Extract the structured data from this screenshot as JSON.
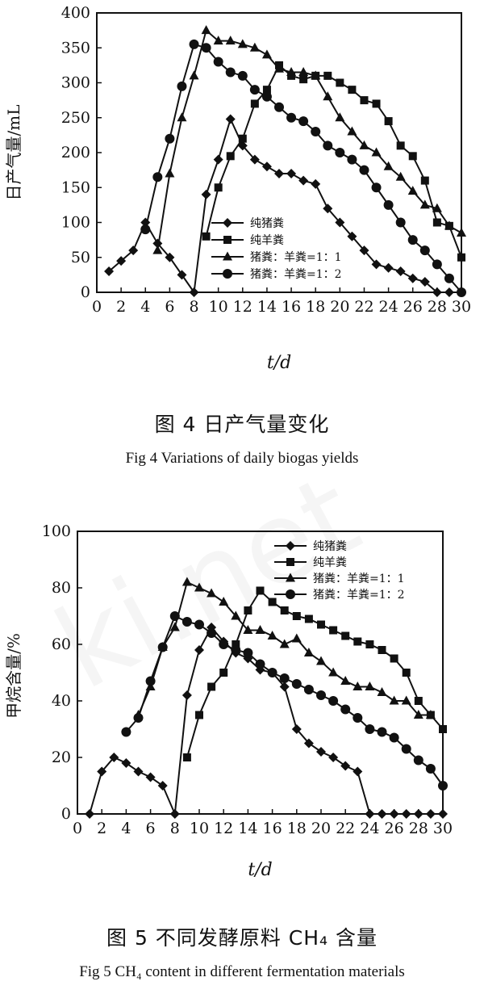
{
  "watermark": "ki.net",
  "charts": [
    {
      "caption_cn": "图 4   日产气量变化",
      "caption_en": "Fig 4    Variations of daily biogas yields"
    },
    {
      "caption_cn": "图 5   不同发酵原料 CH₄ 含量",
      "caption_en": "Fig 5    CH₄ content in different fermentation materials"
    }
  ],
  "chart_data": [
    {
      "type": "line",
      "ylabel": "日产气量/mL",
      "xlabel": "t/d",
      "xlim": [
        0,
        30
      ],
      "ylim": [
        0,
        400
      ],
      "xticks": [
        0,
        2,
        4,
        6,
        8,
        10,
        12,
        14,
        16,
        18,
        20,
        22,
        24,
        26,
        28,
        30
      ],
      "yticks": [
        0,
        50,
        100,
        150,
        200,
        250,
        300,
        350,
        400
      ],
      "legend_position": "lower-center",
      "series": [
        {
          "name": "纯猪粪",
          "marker": "diamond",
          "x": [
            1,
            2,
            3,
            4,
            5,
            6,
            7,
            8,
            9,
            10,
            11,
            12,
            13,
            14,
            15,
            16,
            17,
            18,
            19,
            20,
            21,
            22,
            23,
            24,
            25,
            26,
            27,
            28,
            29
          ],
          "y": [
            30,
            45,
            60,
            100,
            70,
            50,
            25,
            0,
            140,
            190,
            248,
            210,
            190,
            180,
            170,
            170,
            160,
            155,
            120,
            100,
            80,
            60,
            40,
            35,
            30,
            20,
            15,
            0,
            0
          ]
        },
        {
          "name": "纯羊粪",
          "marker": "square",
          "x": [
            9,
            10,
            11,
            12,
            13,
            14,
            15,
            16,
            17,
            18,
            19,
            20,
            21,
            22,
            23,
            24,
            25,
            26,
            27,
            28,
            29,
            30
          ],
          "y": [
            80,
            150,
            195,
            220,
            270,
            290,
            325,
            310,
            305,
            310,
            310,
            300,
            290,
            275,
            270,
            245,
            210,
            195,
            160,
            100,
            95,
            50
          ]
        },
        {
          "name": "猪粪：羊粪=1：1",
          "marker": "triangle",
          "x": [
            5,
            6,
            7,
            8,
            9,
            10,
            11,
            12,
            13,
            14,
            15,
            16,
            17,
            18,
            19,
            20,
            21,
            22,
            23,
            24,
            25,
            26,
            27,
            28,
            29,
            30
          ],
          "y": [
            60,
            170,
            250,
            310,
            375,
            360,
            360,
            355,
            350,
            340,
            320,
            315,
            315,
            310,
            280,
            250,
            230,
            210,
            200,
            180,
            165,
            145,
            125,
            120,
            95,
            85
          ]
        },
        {
          "name": "猪粪：羊粪=1：2",
          "marker": "circle",
          "x": [
            4,
            5,
            6,
            7,
            8,
            9,
            10,
            11,
            12,
            13,
            14,
            15,
            16,
            17,
            18,
            19,
            20,
            21,
            22,
            23,
            24,
            25,
            26,
            27,
            28,
            29,
            30
          ],
          "y": [
            90,
            165,
            220,
            295,
            355,
            350,
            330,
            315,
            310,
            290,
            280,
            265,
            250,
            245,
            230,
            210,
            200,
            190,
            175,
            150,
            125,
            100,
            75,
            60,
            40,
            20,
            0
          ]
        }
      ]
    },
    {
      "type": "line",
      "ylabel": "甲烷含量/%",
      "xlabel": "t/d",
      "xlim": [
        0,
        30
      ],
      "ylim": [
        0,
        100
      ],
      "xticks": [
        0,
        2,
        4,
        6,
        8,
        10,
        12,
        14,
        16,
        18,
        20,
        22,
        24,
        26,
        28,
        30
      ],
      "yticks": [
        0,
        20,
        40,
        60,
        80,
        100
      ],
      "legend_position": "top-right",
      "series": [
        {
          "name": "纯猪粪",
          "marker": "diamond",
          "x": [
            1,
            2,
            3,
            4,
            5,
            6,
            7,
            8,
            9,
            10,
            11,
            12,
            13,
            14,
            15,
            16,
            17,
            18,
            19,
            20,
            21,
            22,
            23,
            24,
            25,
            26,
            27,
            28,
            29,
            30
          ],
          "y": [
            0,
            15,
            20,
            18,
            15,
            13,
            10,
            0,
            42,
            58,
            66,
            61,
            57,
            55,
            51,
            50,
            45,
            30,
            25,
            22,
            20,
            17,
            15,
            0,
            0,
            0,
            0,
            0,
            0,
            0
          ]
        },
        {
          "name": "纯羊粪",
          "marker": "square",
          "x": [
            9,
            10,
            11,
            12,
            13,
            14,
            15,
            16,
            17,
            18,
            19,
            20,
            21,
            22,
            23,
            24,
            25,
            26,
            27,
            28,
            29,
            30
          ],
          "y": [
            20,
            35,
            45,
            50,
            60,
            72,
            79,
            75,
            72,
            70,
            69,
            67,
            65,
            63,
            61,
            60,
            58,
            55,
            50,
            40,
            35,
            30
          ]
        },
        {
          "name": "猪粪：羊粪=1：1",
          "marker": "triangle",
          "x": [
            5,
            6,
            7,
            8,
            9,
            10,
            11,
            12,
            13,
            14,
            15,
            16,
            17,
            18,
            19,
            20,
            21,
            22,
            23,
            24,
            25,
            26,
            27,
            28,
            29
          ],
          "y": [
            35,
            45,
            59,
            66,
            82,
            80,
            78,
            75,
            70,
            65,
            65,
            63,
            60,
            62,
            57,
            54,
            50,
            47,
            45,
            45,
            43,
            40,
            40,
            35,
            35
          ]
        },
        {
          "name": "猪粪：羊粪=1：2",
          "marker": "circle",
          "x": [
            4,
            5,
            6,
            7,
            8,
            9,
            10,
            11,
            12,
            13,
            14,
            15,
            16,
            17,
            18,
            19,
            20,
            21,
            22,
            23,
            24,
            25,
            26,
            27,
            28,
            29,
            30
          ],
          "y": [
            29,
            34,
            47,
            59,
            70,
            68,
            67,
            64,
            60,
            58,
            57,
            53,
            50,
            48,
            46,
            44,
            42,
            40,
            37,
            34,
            30,
            29,
            27,
            23,
            19,
            16,
            10
          ]
        }
      ]
    }
  ]
}
